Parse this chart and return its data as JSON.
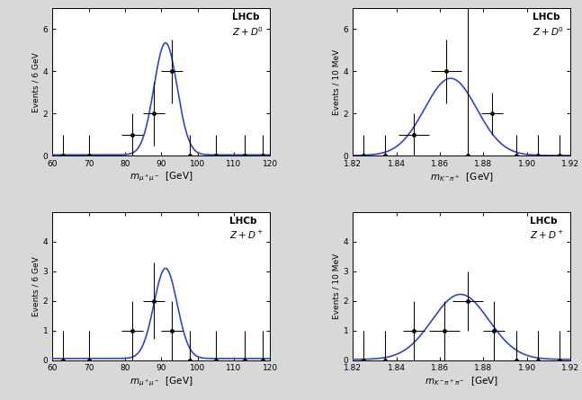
{
  "panels": [
    {
      "label": "LHCb\n$Z + D^0$",
      "xlabel": "$m_{\\mu^+\\mu^-}$  [GeV]",
      "ylabel": "Events / 6 GeV",
      "xlim": [
        60,
        120
      ],
      "ylim": [
        0,
        7
      ],
      "yticks": [
        0,
        2,
        4,
        6
      ],
      "xticks": [
        60,
        70,
        80,
        90,
        100,
        110,
        120
      ],
      "curve_mu": 91.2,
      "curve_sigma": 3.2,
      "curve_amp": 5.3,
      "curve_bkg": 0.05,
      "data_x": [
        63,
        70,
        82,
        88,
        93,
        98,
        105,
        113,
        118
      ],
      "data_y": [
        0.0,
        0.0,
        1.0,
        2.0,
        4.0,
        0.0,
        0.0,
        0.0,
        0.0
      ],
      "data_xerr": [
        3,
        3,
        3,
        3,
        3,
        3,
        3,
        3,
        3
      ],
      "data_yerr": [
        1.0,
        1.0,
        1.0,
        1.5,
        1.5,
        1.0,
        1.0,
        1.0,
        1.0
      ]
    },
    {
      "label": "LHCb\n$Z + D^0$",
      "xlabel": "$m_{K^-\\pi^+}$  [GeV]",
      "ylabel": "Events / 10 MeV",
      "xlim": [
        1.82,
        1.92
      ],
      "ylim": [
        0,
        7
      ],
      "yticks": [
        0,
        2,
        4,
        6
      ],
      "xticks": [
        1.82,
        1.84,
        1.86,
        1.88,
        1.9,
        1.92
      ],
      "curve_mu": 1.865,
      "curve_sigma": 0.012,
      "curve_amp": 3.65,
      "curve_bkg": 0.02,
      "data_x": [
        1.825,
        1.835,
        1.848,
        1.863,
        1.873,
        1.884,
        1.895,
        1.905,
        1.915
      ],
      "data_y": [
        0.0,
        0.0,
        1.0,
        4.0,
        0.0,
        2.0,
        0.0,
        0.0,
        0.0
      ],
      "data_xerr": [
        0.005,
        0.005,
        0.007,
        0.007,
        0.007,
        0.005,
        0.005,
        0.005,
        0.005
      ],
      "data_yerr": [
        1.0,
        1.0,
        1.0,
        1.5,
        7.0,
        1.0,
        1.0,
        1.0,
        1.0
      ]
    },
    {
      "label": "LHCb\n$Z + D^+$",
      "xlabel": "$m_{\\mu^+\\mu^-}$  [GeV]",
      "ylabel": "Events / 6 GeV",
      "xlim": [
        60,
        120
      ],
      "ylim": [
        0,
        5
      ],
      "yticks": [
        0,
        1,
        2,
        3,
        4
      ],
      "xticks": [
        60,
        70,
        80,
        90,
        100,
        110,
        120
      ],
      "curve_mu": 91.2,
      "curve_sigma": 3.2,
      "curve_amp": 3.05,
      "curve_bkg": 0.05,
      "data_x": [
        63,
        70,
        82,
        88,
        93,
        98,
        105,
        113,
        118
      ],
      "data_y": [
        0.0,
        0.0,
        1.0,
        2.0,
        1.0,
        0.0,
        0.0,
        0.0,
        0.0
      ],
      "data_xerr": [
        3,
        3,
        3,
        3,
        3,
        3,
        3,
        3,
        3
      ],
      "data_yerr": [
        1.0,
        1.0,
        1.0,
        1.3,
        1.0,
        1.0,
        1.0,
        1.0,
        1.0
      ]
    },
    {
      "label": "LHCb\n$Z + D^+$",
      "xlabel": "$m_{K^-\\pi^+\\pi^-}$  [GeV]",
      "ylabel": "Events / 10 MeV",
      "xlim": [
        1.82,
        1.92
      ],
      "ylim": [
        0,
        5
      ],
      "yticks": [
        0,
        1,
        2,
        3,
        4
      ],
      "xticks": [
        1.82,
        1.84,
        1.86,
        1.88,
        1.9,
        1.92
      ],
      "curve_mu": 1.8695,
      "curve_sigma": 0.013,
      "curve_amp": 2.2,
      "curve_bkg": 0.02,
      "data_x": [
        1.825,
        1.835,
        1.848,
        1.862,
        1.873,
        1.885,
        1.895,
        1.905,
        1.915
      ],
      "data_y": [
        0.0,
        0.0,
        1.0,
        1.0,
        2.0,
        1.0,
        0.0,
        0.0,
        0.0
      ],
      "data_xerr": [
        0.005,
        0.005,
        0.005,
        0.007,
        0.007,
        0.005,
        0.005,
        0.005,
        0.005
      ],
      "data_yerr": [
        1.0,
        1.0,
        1.0,
        1.0,
        1.0,
        1.0,
        1.0,
        1.0,
        1.0
      ]
    }
  ],
  "curve_color": "#3344cc",
  "data_color": "#000000",
  "fig_facecolor": "#d8d8d8",
  "panel_facecolor": "#ffffff"
}
